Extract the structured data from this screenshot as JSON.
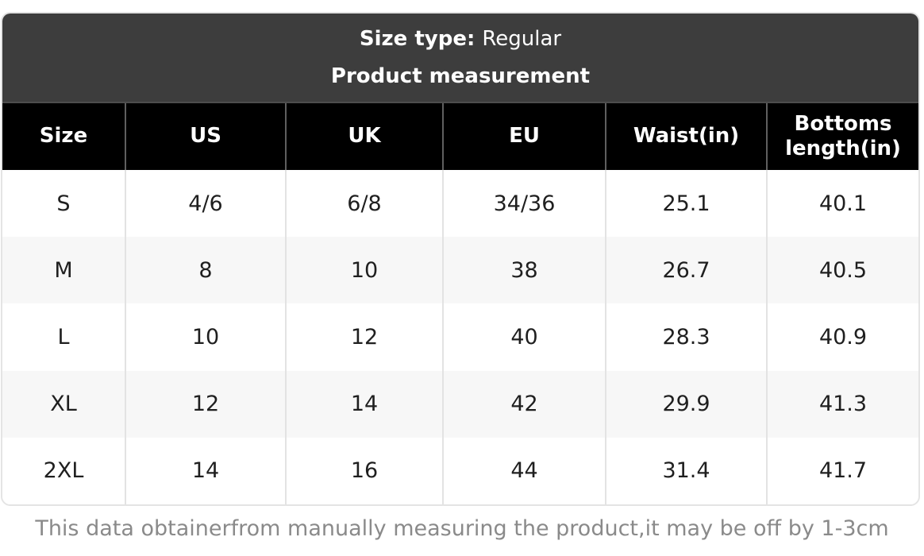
{
  "banner": {
    "size_type_label": "Size type:",
    "size_type_value": "Regular",
    "subtitle": "Product measurement"
  },
  "table": {
    "headers": [
      "Size",
      "US",
      "UK",
      "EU",
      "Waist(in)",
      "Bottoms length(in)"
    ],
    "rows": [
      [
        "S",
        "4/6",
        "6/8",
        "34/36",
        "25.1",
        "40.1"
      ],
      [
        "M",
        "8",
        "10",
        "38",
        "26.7",
        "40.5"
      ],
      [
        "L",
        "10",
        "12",
        "40",
        "28.3",
        "40.9"
      ],
      [
        "XL",
        "12",
        "14",
        "42",
        "29.9",
        "41.3"
      ],
      [
        "2XL",
        "14",
        "16",
        "44",
        "31.4",
        "41.7"
      ]
    ]
  },
  "footer": {
    "note": "This data obtainerfrom manually measuring the product,it may be off by 1-3cm"
  },
  "colors": {
    "banner_bg": "#3d3d3d",
    "header_bg": "#000000",
    "stripe_bg": "#f7f7f7",
    "header_text": "#ffffff",
    "body_text": "#1f1f1f",
    "footer_text": "#8a8a8a",
    "body_border": "#e3e3e3",
    "header_border": "#5f5f5f"
  }
}
